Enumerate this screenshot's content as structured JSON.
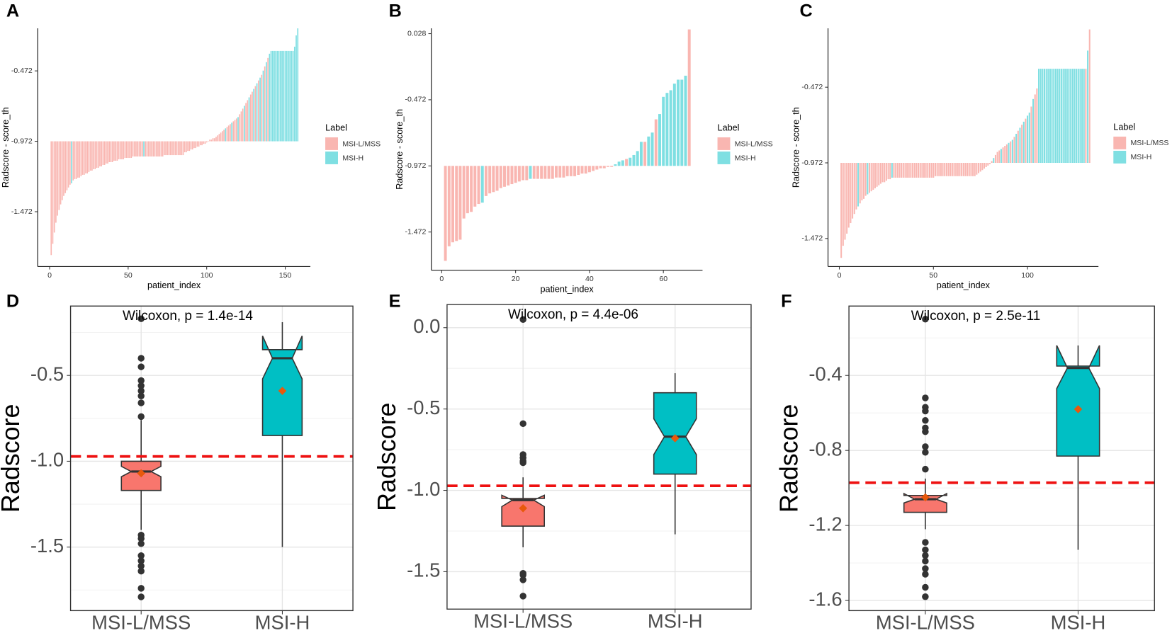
{
  "chart_data": [
    {
      "type": "bar",
      "panel_label": "A",
      "xlabel": "patient_index",
      "ylabel": "Radscore - score_th",
      "legend_title": "Label",
      "xlim": [
        -7.6,
        166
      ],
      "ylim": [
        -1.861,
        -0.17
      ],
      "xticks": [
        0,
        50,
        100,
        150
      ],
      "yticks": [
        -0.472,
        -0.972,
        -1.472
      ],
      "baseline": -0.972,
      "series": [
        {
          "name": "MSI-L/MSS",
          "color": "#f9b6b1",
          "x": [
            1,
            2,
            3,
            4,
            5,
            6,
            7,
            8,
            9,
            10,
            11,
            12,
            13,
            15,
            16,
            17,
            18,
            19,
            20,
            21,
            22,
            23,
            24,
            25,
            26,
            27,
            28,
            29,
            30,
            31,
            32,
            33,
            34,
            35,
            36,
            37,
            38,
            39,
            40,
            41,
            42,
            43,
            44,
            45,
            46,
            47,
            48,
            49,
            50,
            51,
            52,
            53,
            54,
            55,
            56,
            57,
            58,
            59,
            61,
            62,
            63,
            64,
            65,
            66,
            67,
            68,
            69,
            70,
            71,
            72,
            73,
            74,
            75,
            76,
            77,
            78,
            79,
            80,
            81,
            82,
            83,
            84,
            85,
            86,
            87,
            88,
            89,
            90,
            91,
            92,
            93,
            94,
            95,
            96,
            97,
            98,
            99,
            100,
            101,
            102,
            103,
            104,
            105,
            106,
            107,
            108,
            109,
            110,
            111,
            113,
            114,
            115,
            117,
            118,
            119,
            121,
            122,
            123,
            125,
            126,
            128,
            129,
            131,
            133,
            135,
            137,
            139
          ],
          "values": [
            -1.78,
            -1.7,
            -1.62,
            -1.55,
            -1.5,
            -1.46,
            -1.42,
            -1.39,
            -1.36,
            -1.34,
            -1.32,
            -1.3,
            -1.28,
            -1.25,
            -1.24,
            -1.24,
            -1.23,
            -1.23,
            -1.22,
            -1.21,
            -1.21,
            -1.2,
            -1.2,
            -1.19,
            -1.18,
            -1.18,
            -1.17,
            -1.17,
            -1.16,
            -1.16,
            -1.15,
            -1.15,
            -1.14,
            -1.14,
            -1.13,
            -1.13,
            -1.12,
            -1.12,
            -1.12,
            -1.11,
            -1.11,
            -1.11,
            -1.1,
            -1.1,
            -1.1,
            -1.1,
            -1.09,
            -1.09,
            -1.09,
            -1.09,
            -1.09,
            -1.08,
            -1.08,
            -1.08,
            -1.08,
            -1.08,
            -1.08,
            -1.08,
            -1.08,
            -1.08,
            -1.08,
            -1.08,
            -1.08,
            -1.08,
            -1.08,
            -1.08,
            -1.08,
            -1.08,
            -1.08,
            -1.08,
            -1.07,
            -1.07,
            -1.07,
            -1.07,
            -1.07,
            -1.07,
            -1.07,
            -1.07,
            -1.07,
            -1.07,
            -1.07,
            -1.07,
            -1.07,
            -1.05,
            -1.05,
            -1.04,
            -1.04,
            -1.03,
            -1.03,
            -1.02,
            -1.02,
            -1.01,
            -1.01,
            -1.0,
            -1.0,
            -0.99,
            -0.99,
            -0.98,
            -0.97,
            -0.96,
            -0.96,
            -0.95,
            -0.95,
            -0.94,
            -0.93,
            -0.92,
            -0.91,
            -0.9,
            -0.89,
            -0.87,
            -0.86,
            -0.85,
            -0.83,
            -0.82,
            -0.81,
            -0.78,
            -0.76,
            -0.74,
            -0.7,
            -0.68,
            -0.64,
            -0.62,
            -0.58,
            -0.54,
            -0.5,
            -0.44,
            -0.38
          ]
        },
        {
          "name": "MSI-H",
          "color": "#7fdfe2",
          "x": [
            14,
            60,
            112,
            116,
            120,
            124,
            127,
            130,
            132,
            134,
            136,
            138,
            140,
            141,
            142,
            143,
            144,
            145,
            146,
            147,
            148,
            149,
            150,
            151,
            152,
            153,
            154,
            155,
            156,
            157,
            158
          ],
          "values": [
            -1.27,
            -1.08,
            -0.88,
            -0.84,
            -0.8,
            -0.72,
            -0.66,
            -0.6,
            -0.56,
            -0.52,
            -0.47,
            -0.41,
            -0.35,
            -0.33,
            -0.33,
            -0.33,
            -0.33,
            -0.33,
            -0.33,
            -0.33,
            -0.33,
            -0.33,
            -0.33,
            -0.33,
            -0.33,
            -0.33,
            -0.33,
            -0.33,
            -0.3,
            -0.22,
            -0.17
          ]
        }
      ]
    },
    {
      "type": "bar",
      "panel_label": "B",
      "xlabel": "patient_index",
      "ylabel": "Radscore - score_th",
      "legend_title": "Label",
      "xlim": [
        -2.8,
        70.6
      ],
      "ylim": [
        -1.761,
        0.068
      ],
      "xticks": [
        0,
        20,
        40,
        60
      ],
      "yticks": [
        0.028,
        -0.472,
        -0.972,
        -1.472
      ],
      "baseline": -0.972,
      "series": [
        {
          "name": "MSI-L/MSS",
          "color": "#f9b6b1",
          "x": [
            1,
            2,
            3,
            4,
            5,
            6,
            7,
            8,
            9,
            10,
            12,
            13,
            14,
            15,
            16,
            17,
            18,
            19,
            20,
            21,
            22,
            23,
            25,
            26,
            27,
            28,
            29,
            30,
            31,
            32,
            33,
            34,
            35,
            36,
            37,
            38,
            39,
            40,
            41,
            42,
            43,
            44,
            45,
            46,
            50,
            55,
            58,
            67
          ],
          "values": [
            -1.69,
            -1.58,
            -1.55,
            -1.54,
            -1.53,
            -1.37,
            -1.33,
            -1.32,
            -1.28,
            -1.26,
            -1.2,
            -1.18,
            -1.17,
            -1.16,
            -1.14,
            -1.13,
            -1.12,
            -1.11,
            -1.1,
            -1.09,
            -1.08,
            -1.08,
            -1.07,
            -1.07,
            -1.07,
            -1.07,
            -1.07,
            -1.07,
            -1.06,
            -1.06,
            -1.06,
            -1.05,
            -1.05,
            -1.05,
            -1.04,
            -1.03,
            -1.03,
            -1.02,
            -1.01,
            -1.0,
            -0.99,
            -0.99,
            -0.98,
            -0.98,
            -0.92,
            -0.79,
            -0.62,
            0.06
          ]
        },
        {
          "name": "MSI-H",
          "color": "#7fdfe2",
          "x": [
            11,
            24,
            47,
            48,
            49,
            51,
            52,
            53,
            54,
            56,
            57,
            59,
            60,
            61,
            62,
            63,
            64,
            65,
            66
          ],
          "values": [
            -1.25,
            -1.07,
            -0.96,
            -0.94,
            -0.93,
            -0.91,
            -0.89,
            -0.86,
            -0.79,
            -0.75,
            -0.72,
            -0.58,
            -0.45,
            -0.42,
            -0.4,
            -0.35,
            -0.32,
            -0.32,
            -0.29
          ]
        }
      ]
    },
    {
      "type": "bar",
      "panel_label": "C",
      "xlabel": "patient_index",
      "ylabel": "Radscore - score_th",
      "legend_title": "Label",
      "xlim": [
        -6,
        137.7
      ],
      "ylim": [
        -1.657,
        -0.083
      ],
      "xticks": [
        0,
        50,
        100
      ],
      "yticks": [
        -0.472,
        -0.972,
        -1.472
      ],
      "baseline": -0.972,
      "series": [
        {
          "name": "MSI-L/MSS",
          "color": "#f9b6b1",
          "x": [
            1,
            2,
            3,
            4,
            5,
            6,
            7,
            8,
            9,
            11,
            12,
            13,
            14,
            16,
            17,
            18,
            19,
            20,
            21,
            22,
            23,
            24,
            25,
            26,
            27,
            29,
            30,
            31,
            32,
            33,
            34,
            35,
            36,
            37,
            38,
            39,
            40,
            41,
            42,
            43,
            44,
            45,
            46,
            47,
            48,
            49,
            50,
            51,
            52,
            53,
            54,
            55,
            56,
            57,
            58,
            59,
            60,
            61,
            62,
            63,
            64,
            65,
            66,
            67,
            68,
            69,
            70,
            71,
            72,
            73,
            74,
            75,
            76,
            77,
            78,
            79,
            80,
            81,
            83,
            84,
            85,
            87,
            88,
            89,
            91,
            93,
            95,
            97,
            99,
            102,
            104,
            105,
            131,
            133
          ],
          "values": [
            -1.6,
            -1.52,
            -1.48,
            -1.44,
            -1.4,
            -1.37,
            -1.34,
            -1.31,
            -1.28,
            -1.24,
            -1.22,
            -1.21,
            -1.19,
            -1.17,
            -1.16,
            -1.15,
            -1.14,
            -1.13,
            -1.12,
            -1.11,
            -1.1,
            -1.1,
            -1.09,
            -1.08,
            -1.08,
            -1.07,
            -1.07,
            -1.07,
            -1.07,
            -1.07,
            -1.07,
            -1.07,
            -1.07,
            -1.07,
            -1.07,
            -1.07,
            -1.07,
            -1.07,
            -1.07,
            -1.07,
            -1.07,
            -1.07,
            -1.07,
            -1.07,
            -1.07,
            -1.07,
            -1.07,
            -1.06,
            -1.06,
            -1.06,
            -1.06,
            -1.06,
            -1.06,
            -1.06,
            -1.06,
            -1.06,
            -1.06,
            -1.06,
            -1.06,
            -1.06,
            -1.06,
            -1.06,
            -1.06,
            -1.06,
            -1.06,
            -1.06,
            -1.06,
            -1.06,
            -1.06,
            -1.05,
            -1.04,
            -1.03,
            -1.02,
            -1.01,
            -1.0,
            -0.99,
            -0.98,
            -0.96,
            -0.92,
            -0.9,
            -0.89,
            -0.87,
            -0.86,
            -0.85,
            -0.83,
            -0.8,
            -0.76,
            -0.72,
            -0.68,
            -0.6,
            -0.52,
            -0.48,
            -0.35,
            -0.09
          ]
        },
        {
          "name": "MSI-H",
          "color": "#7fdfe2",
          "x": [
            10,
            15,
            28,
            82,
            86,
            90,
            92,
            94,
            96,
            98,
            100,
            101,
            103,
            106,
            107,
            108,
            109,
            110,
            111,
            112,
            113,
            114,
            115,
            116,
            117,
            118,
            119,
            120,
            121,
            122,
            123,
            124,
            125,
            126,
            127,
            128,
            129,
            130,
            132
          ],
          "values": [
            -1.26,
            -1.18,
            -1.07,
            -0.94,
            -0.88,
            -0.84,
            -0.82,
            -0.78,
            -0.74,
            -0.7,
            -0.66,
            -0.64,
            -0.55,
            -0.35,
            -0.35,
            -0.35,
            -0.35,
            -0.35,
            -0.35,
            -0.35,
            -0.35,
            -0.35,
            -0.35,
            -0.35,
            -0.35,
            -0.35,
            -0.35,
            -0.35,
            -0.35,
            -0.35,
            -0.35,
            -0.35,
            -0.35,
            -0.35,
            -0.35,
            -0.35,
            -0.35,
            -0.35,
            -0.23
          ]
        }
      ]
    },
    {
      "type": "box",
      "panel_label": "D",
      "ylabel": "Radscore",
      "annotation": "Wilcoxon, p = 1.4e-14",
      "categories": [
        "MSI-L/MSS",
        "MSI-H"
      ],
      "ylim": [
        -1.87,
        -0.096
      ],
      "yticks": [
        -0.5,
        {
          "value": -1,
          "label": "-1.0"
        },
        -1.5
      ],
      "minor_yticks": [
        -0.25,
        -0.75,
        -1.25,
        -1.75
      ],
      "threshold": -0.972,
      "boxes": [
        {
          "color": "#f8766d",
          "min": -1.4,
          "q1": -1.17,
          "notch": [
            -1.09,
            -1.03
          ],
          "median": -1.06,
          "q3": -1.0,
          "max": -0.76,
          "mean": -1.07,
          "outliers": [
            -0.17,
            -0.4,
            -0.45,
            -0.53,
            -0.56,
            -0.59,
            -0.62,
            -0.66,
            -0.74,
            -1.43,
            -1.45,
            -1.48,
            -1.55,
            -1.58,
            -1.61,
            -1.64,
            -1.74,
            -1.79
          ]
        },
        {
          "color": "#00bfc4",
          "min": -1.5,
          "q1": -0.85,
          "notch": [
            -0.52,
            -0.27
          ],
          "median": -0.4,
          "q3": -0.35,
          "max": -0.19,
          "mean": -0.59,
          "outliers": []
        }
      ]
    },
    {
      "type": "box",
      "panel_label": "E",
      "ylabel": "Radscore",
      "annotation": "Wilcoxon, p = 4.4e-06",
      "categories": [
        "MSI-L/MSS",
        "MSI-H"
      ],
      "ylim": [
        -1.73,
        0.142
      ],
      "yticks": [
        {
          "value": 0,
          "label": "0.0"
        },
        -0.5,
        {
          "value": -1,
          "label": "-1.0"
        },
        -1.5
      ],
      "minor_yticks": [
        -0.25,
        -0.75,
        -1.25
      ],
      "threshold": -0.972,
      "boxes": [
        {
          "color": "#f8766d",
          "min": -1.35,
          "q1": -1.22,
          "notch": [
            -1.1,
            -1.03
          ],
          "median": -1.06,
          "q3": -1.05,
          "max": -0.92,
          "mean": -1.11,
          "outliers": [
            0.05,
            -0.59,
            -0.78,
            -0.8,
            -0.82,
            -0.83,
            -1.51,
            -1.52,
            -1.55,
            -1.65
          ]
        },
        {
          "color": "#00bfc4",
          "min": -1.27,
          "q1": -0.9,
          "notch": [
            -0.78,
            -0.56
          ],
          "median": -0.67,
          "q3": -0.4,
          "max": -0.28,
          "mean": -0.68,
          "outliers": []
        }
      ]
    },
    {
      "type": "box",
      "panel_label": "F",
      "ylabel": "Radscore",
      "annotation": "Wilcoxon, p = 2.5e-11",
      "categories": [
        "MSI-L/MSS",
        "MSI-H"
      ],
      "ylim": [
        -1.654,
        -0.03
      ],
      "yticks": [
        -0.4,
        -0.8,
        -1.2,
        -1.6
      ],
      "minor_yticks": [
        -0.2,
        -0.6,
        -1.0,
        -1.4
      ],
      "threshold": -0.972,
      "boxes": [
        {
          "color": "#f8766d",
          "min": -1.22,
          "q1": -1.13,
          "notch": [
            -1.08,
            -1.03
          ],
          "median": -1.06,
          "q3": -1.04,
          "max": -0.95,
          "mean": -1.05,
          "outliers": [
            -0.1,
            -0.52,
            -0.57,
            -0.59,
            -0.64,
            -0.68,
            -0.7,
            -0.78,
            -0.81,
            -0.9,
            -1.29,
            -1.33,
            -1.36,
            -1.39,
            -1.43,
            -1.46,
            -1.53,
            -1.58
          ]
        },
        {
          "color": "#00bfc4",
          "min": -1.33,
          "q1": -0.83,
          "notch": [
            -0.47,
            -0.24
          ],
          "median": -0.36,
          "q3": -0.35,
          "max": -0.24,
          "mean": -0.58,
          "outliers": []
        }
      ]
    }
  ]
}
